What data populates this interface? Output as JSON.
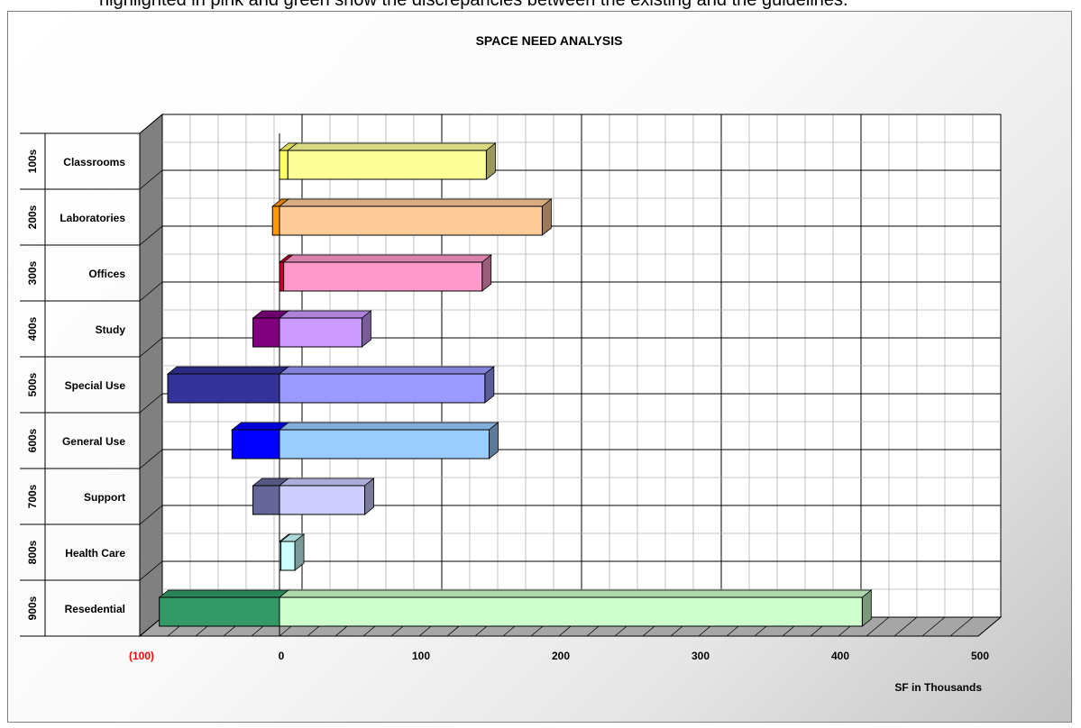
{
  "caption_fragment": "highlighted in pink and green show the discrepancies between the existing and the guidelines.",
  "chart_data": {
    "type": "bar",
    "orientation": "horizontal",
    "stacked": true,
    "three_d": true,
    "title": "SPACE NEED ANALYSIS",
    "xlabel": "SF in Thousands",
    "xlim": [
      -100,
      500
    ],
    "x_ticks": [
      -100,
      0,
      100,
      200,
      300,
      400,
      500
    ],
    "x_tick_labels": [
      "(100)",
      "0",
      "100",
      "200",
      "300",
      "400",
      "500"
    ],
    "negative_tick_color": "#ff0000",
    "grid": true,
    "legend": "none",
    "categories": [
      {
        "code": "100s",
        "name": "Classrooms"
      },
      {
        "code": "200s",
        "name": "Laboratories"
      },
      {
        "code": "300s",
        "name": "Offices"
      },
      {
        "code": "400s",
        "name": "Study"
      },
      {
        "code": "500s",
        "name": "Special Use"
      },
      {
        "code": "600s",
        "name": "General Use"
      },
      {
        "code": "700s",
        "name": "Support"
      },
      {
        "code": "800s",
        "name": "Health Care"
      },
      {
        "code": "900s",
        "name": "Resedential"
      }
    ],
    "series": [
      {
        "values": [
          6,
          -5,
          3,
          -19,
          -80,
          -34,
          -19,
          1,
          -86
        ],
        "colors": [
          "#ffff66",
          "#ff9900",
          "#cc0033",
          "#800080",
          "#333399",
          "#0000ff",
          "#666699",
          "#ccffff",
          "#339966"
        ]
      },
      {
        "values": [
          142,
          188,
          142,
          59,
          147,
          150,
          61,
          10,
          417
        ],
        "colors": [
          "#ffff99",
          "#ffcc99",
          "#ff99cc",
          "#cc99ff",
          "#9999ff",
          "#99ccff",
          "#ccccff",
          "#ccffff",
          "#ccffcc"
        ]
      }
    ]
  }
}
